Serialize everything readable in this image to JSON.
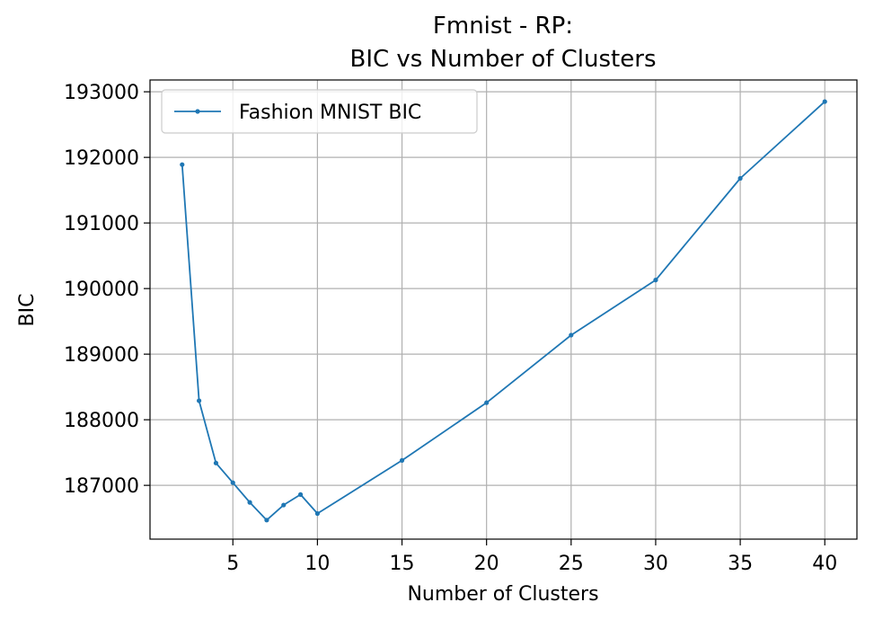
{
  "chart_data": {
    "type": "line",
    "title_lines": [
      "Fmnist - RP:",
      "BIC vs Number of Clusters"
    ],
    "xlabel": "Number of Clusters",
    "ylabel": "BIC",
    "xlim": [
      0.1,
      41.9
    ],
    "ylim": [
      186180,
      193180
    ],
    "xticks": [
      5,
      10,
      15,
      20,
      25,
      30,
      35,
      40
    ],
    "yticks": [
      187000,
      188000,
      189000,
      190000,
      191000,
      192000,
      193000
    ],
    "grid": true,
    "legend_position": "upper-left",
    "series": [
      {
        "name": "Fashion MNIST BIC",
        "color": "#1f77b4",
        "marker": "dot",
        "x": [
          2,
          3,
          4,
          5,
          6,
          7,
          8,
          9,
          10,
          15,
          20,
          25,
          30,
          35,
          40
        ],
        "y": [
          191890,
          188290,
          187340,
          187040,
          186740,
          186470,
          186700,
          186860,
          186570,
          187380,
          188260,
          189290,
          190130,
          191680,
          192850
        ]
      }
    ]
  }
}
